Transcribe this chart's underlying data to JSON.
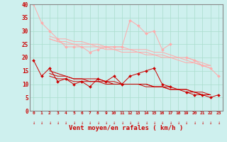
{
  "x": [
    0,
    1,
    2,
    3,
    4,
    5,
    6,
    7,
    8,
    9,
    10,
    11,
    12,
    13,
    14,
    15,
    16,
    17,
    18,
    19,
    20,
    21,
    22,
    23
  ],
  "series_light1": [
    40,
    33,
    30,
    27,
    24,
    24,
    24,
    22,
    23,
    24,
    24,
    24,
    34,
    32,
    29,
    30,
    23,
    25,
    null,
    20,
    19,
    17,
    16,
    13
  ],
  "series_light2": [
    null,
    null,
    28,
    27,
    27,
    26,
    26,
    25,
    25,
    24,
    24,
    24,
    23,
    23,
    23,
    22,
    22,
    21,
    20,
    20,
    19,
    18,
    17,
    null
  ],
  "series_light3": [
    null,
    null,
    27,
    26,
    26,
    25,
    25,
    25,
    24,
    24,
    23,
    23,
    23,
    22,
    22,
    21,
    21,
    20,
    20,
    19,
    18,
    17,
    17,
    null
  ],
  "series_light4": [
    null,
    null,
    27,
    26,
    25,
    25,
    24,
    24,
    24,
    23,
    23,
    22,
    22,
    22,
    21,
    21,
    20,
    20,
    19,
    18,
    18,
    17,
    16,
    null
  ],
  "series_dark1": [
    19,
    13,
    16,
    11,
    12,
    10,
    11,
    9,
    12,
    11,
    13,
    10,
    13,
    14,
    15,
    16,
    10,
    9,
    null,
    7,
    6,
    6,
    5,
    6
  ],
  "series_dark2": [
    null,
    null,
    15,
    14,
    13,
    12,
    12,
    12,
    12,
    11,
    11,
    10,
    10,
    10,
    10,
    9,
    9,
    8,
    8,
    8,
    7,
    6,
    6,
    null
  ],
  "series_dark3": [
    null,
    null,
    14,
    13,
    13,
    12,
    12,
    11,
    11,
    11,
    10,
    10,
    10,
    10,
    9,
    9,
    9,
    8,
    8,
    7,
    7,
    6,
    6,
    null
  ],
  "series_dark4": [
    null,
    null,
    13,
    12,
    12,
    11,
    11,
    11,
    11,
    10,
    10,
    10,
    10,
    10,
    10,
    9,
    9,
    9,
    8,
    8,
    7,
    7,
    6,
    null
  ],
  "ylim": [
    0,
    40
  ],
  "xlim": [
    -0.5,
    23.5
  ],
  "yticks": [
    0,
    5,
    10,
    15,
    20,
    25,
    30,
    35,
    40
  ],
  "xticks": [
    0,
    1,
    2,
    3,
    4,
    5,
    6,
    7,
    8,
    9,
    10,
    11,
    12,
    13,
    14,
    15,
    16,
    17,
    18,
    19,
    20,
    21,
    22,
    23
  ],
  "xlabel": "Vent moyen/en rafales ( km/h )",
  "bg_color": "#cef0ee",
  "grid_color": "#aaddcc",
  "light_line_color": "#ffaaaa",
  "dark_line_color": "#cc0000",
  "arrow_color": "#cc0000",
  "axis_color": "#888888"
}
